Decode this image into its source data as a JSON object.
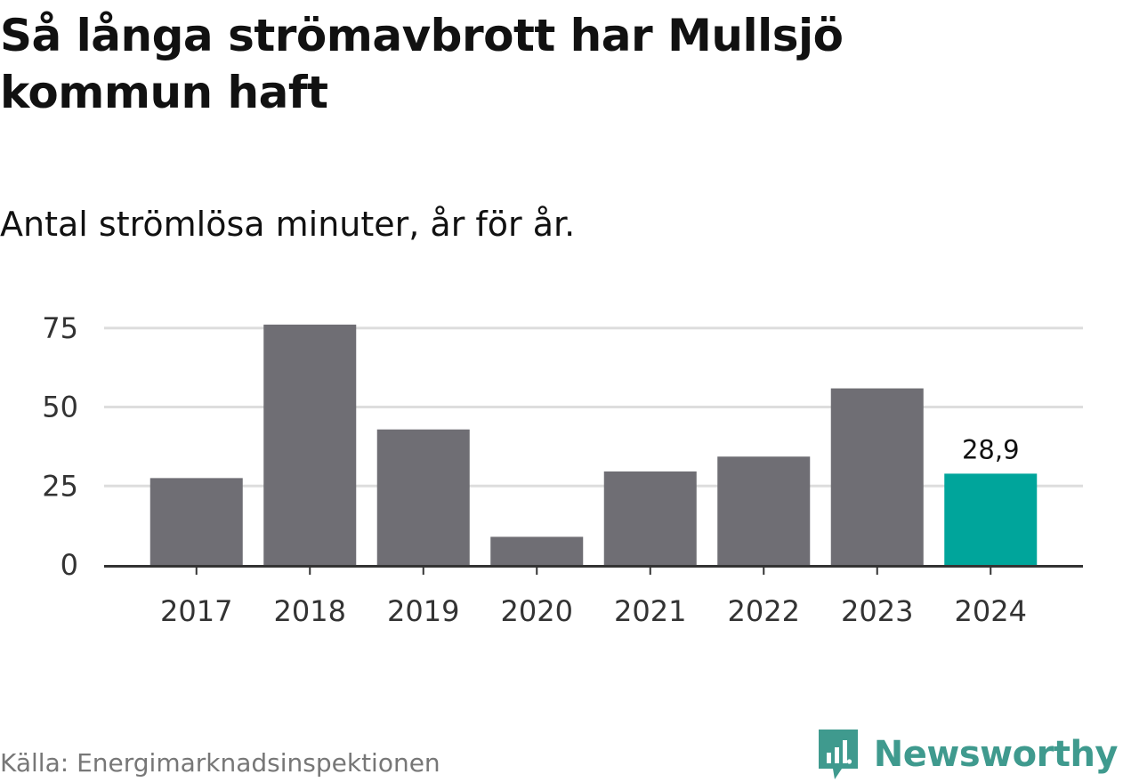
{
  "title": "Så långa strömavbrott har Mullsjö kommun haft",
  "subtitle": "Antal strömlösa minuter, år för år.",
  "source": "Källa: Energimarknadsinspektionen",
  "logo": {
    "text": "Newsworthy",
    "icon": "newsworthy-chart-bubble-icon",
    "color": "#3f9a8e"
  },
  "colors": {
    "bar": "#6f6e74",
    "highlight": "#00a59b",
    "grid": "#dddddd",
    "axis": "#333333"
  },
  "chart_data": {
    "type": "bar",
    "title": "Så långa strömavbrott har Mullsjö kommun haft",
    "subtitle": "Antal strömlösa minuter, år för år.",
    "xlabel": "",
    "ylabel": "",
    "categories": [
      "2017",
      "2018",
      "2019",
      "2020",
      "2021",
      "2022",
      "2023",
      "2024"
    ],
    "values": [
      27.5,
      76.1,
      42.9,
      8.9,
      29.6,
      34.3,
      55.9,
      28.9
    ],
    "highlight_index": 7,
    "data_labels": [
      {
        "index": 7,
        "text": "28,9"
      }
    ],
    "ylim": [
      0,
      76.1
    ],
    "yticks": [
      0,
      25,
      50,
      75
    ],
    "grid": true,
    "legend": "none"
  }
}
